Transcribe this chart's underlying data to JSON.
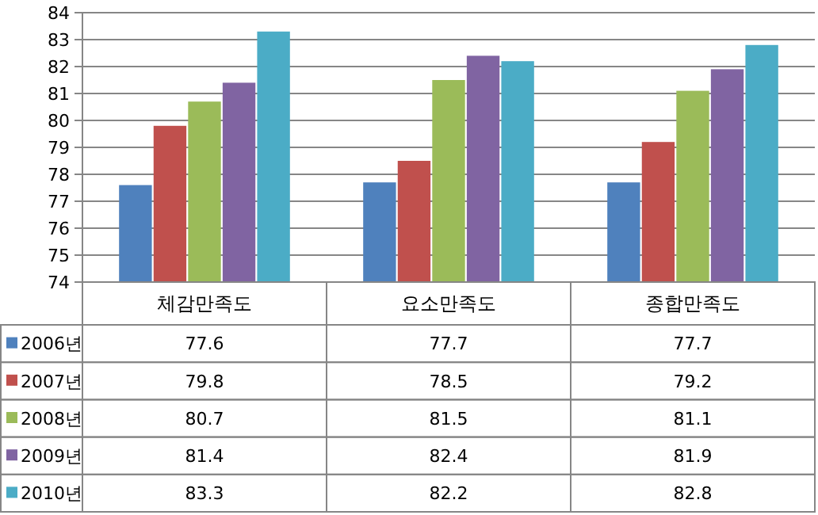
{
  "chart_data": {
    "type": "bar",
    "categories": [
      "체감만족도",
      "요소만족도",
      "종합만족도"
    ],
    "series": [
      {
        "name": "2006년",
        "color": "#4f81bd",
        "values": [
          77.6,
          77.7,
          77.7
        ]
      },
      {
        "name": "2007년",
        "color": "#c0504d",
        "values": [
          79.8,
          78.5,
          79.2
        ]
      },
      {
        "name": "2008년",
        "color": "#9bbb59",
        "values": [
          80.7,
          81.5,
          81.1
        ]
      },
      {
        "name": "2009년",
        "color": "#8064a2",
        "values": [
          81.4,
          82.4,
          81.9
        ]
      },
      {
        "name": "2010년",
        "color": "#4bacc6",
        "values": [
          83.3,
          82.2,
          82.8
        ]
      }
    ],
    "ylim": [
      74,
      84
    ],
    "yticks": [
      74,
      75,
      76,
      77,
      78,
      79,
      80,
      81,
      82,
      83,
      84
    ],
    "grid": "y",
    "data_labels": true,
    "legend": "bottom left"
  }
}
